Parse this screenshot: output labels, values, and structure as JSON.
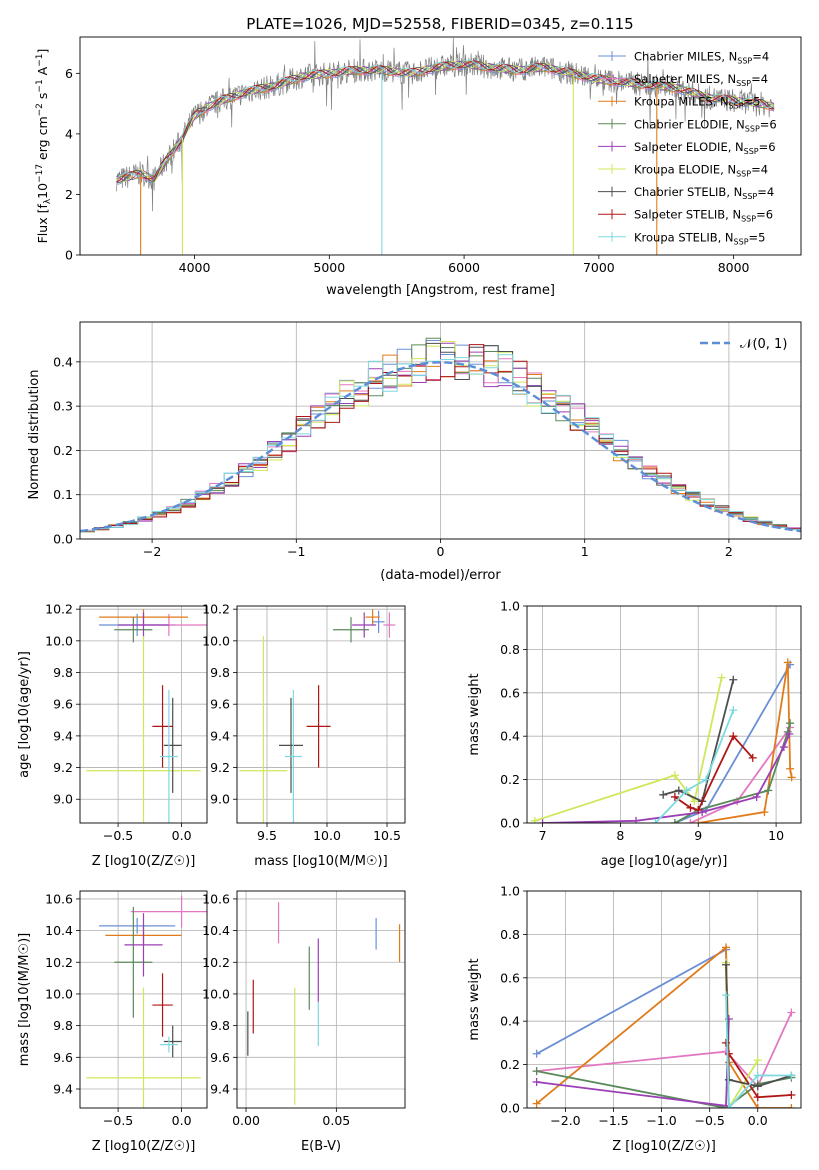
{
  "title": "PLATE=1026, MJD=52558, FIBERID=0345, z=0.115",
  "colors": {
    "Chabrier MILES": "#6b8fd6",
    "Salpeter MILES": "#e377c2",
    "Kroupa MILES": "#e07b1a",
    "Chabrier ELODIE": "#5a8a5a",
    "Salpeter ELODIE": "#9b3fb5",
    "Kroupa ELODIE": "#cde85a",
    "Chabrier STELIB": "#4d4d4d",
    "Salpeter STELIB": "#b01515",
    "Kroupa STELIB": "#7dd9e0"
  },
  "chart_data": [
    {
      "type": "line",
      "id": "spectrum",
      "title": "PLATE=1026, MJD=52558, FIBERID=0345, z=0.115",
      "xlabel": "wavelength [Angstrom, rest frame]",
      "ylabel": "Flux [f_λ 10^-17 erg cm^-2 s^-1 A^-1]",
      "xlim": [
        3150,
        8500
      ],
      "ylim": [
        0,
        7.2
      ],
      "xticks": [
        "4000",
        "5000",
        "6000",
        "7000",
        "8000"
      ],
      "yticks": [
        "0",
        "2",
        "4",
        "6"
      ],
      "data_curve": {
        "x": [
          3450,
          3600,
          3700,
          3800,
          3900,
          4000,
          4100,
          4200,
          4400,
          4600,
          4800,
          5000,
          5200,
          5400,
          5600,
          5800,
          6000,
          6200,
          6400,
          6600,
          6800,
          7000,
          7200,
          7400,
          7600,
          7800,
          8000,
          8200,
          8300
        ],
        "y": [
          2.5,
          2.7,
          2.5,
          3.2,
          3.8,
          4.6,
          4.9,
          5.1,
          5.4,
          5.6,
          5.9,
          6.0,
          6.1,
          6.1,
          6.0,
          6.2,
          6.3,
          6.2,
          6.1,
          6.2,
          6.0,
          5.8,
          5.7,
          5.6,
          5.5,
          5.2,
          5.1,
          5.0,
          4.9
        ]
      },
      "legend": [
        "Chabrier MILES, N_SSP=4",
        "Salpeter MILES, N_SSP=4",
        "Kroupa MILES, N_SSP=5",
        "Chabrier ELODIE, N_SSP=6",
        "Salpeter ELODIE, N_SSP=6",
        "Kroupa ELODIE, N_SSP=4",
        "Chabrier STELIB, N_SSP=4",
        "Salpeter STELIB, N_SSP=6",
        "Kroupa STELIB, N_SSP=5"
      ],
      "legend_placement": "right"
    },
    {
      "type": "histogram",
      "id": "residuals",
      "xlabel": "(data-model)/error",
      "ylabel": "Normed distribution",
      "xlim": [
        -2.5,
        2.5
      ],
      "ylim": [
        0,
        0.49
      ],
      "xticks": [
        "−2",
        "−1",
        "0",
        "1",
        "2"
      ],
      "yticks": [
        "0.0",
        "0.1",
        "0.2",
        "0.3",
        "0.4"
      ],
      "grid": true,
      "reference_curve": {
        "name": "𝒩(0, 1)",
        "mu": 0,
        "sigma": 1
      },
      "legend_placement": "top-right"
    },
    {
      "type": "scatter",
      "id": "age_vs_Z",
      "xlabel": "Z [log10(Z/Z☉)]",
      "ylabel": "age [log10(age/yr)]",
      "xlim": [
        -0.8,
        0.2
      ],
      "ylim": [
        8.85,
        10.22
      ],
      "xticks": [
        "−0.5",
        "0.0"
      ],
      "yticks": [
        "9.0",
        "9.2",
        "9.4",
        "9.6",
        "9.8",
        "10.0",
        "10.2"
      ],
      "grid": true,
      "points": [
        {
          "model": "Chabrier MILES",
          "x": -0.35,
          "xerr": 0.3,
          "y": 10.1,
          "yerr": 0.07
        },
        {
          "model": "Salpeter MILES",
          "x": -0.1,
          "xerr": 0.3,
          "y": 10.1,
          "yerr": 0.07
        },
        {
          "model": "Kroupa MILES",
          "x": -0.3,
          "xerr": 0.35,
          "y": 10.15,
          "yerr": 0.05
        },
        {
          "model": "Chabrier ELODIE",
          "x": -0.38,
          "xerr": 0.15,
          "y": 10.07,
          "yerr": 0.08
        },
        {
          "model": "Salpeter ELODIE",
          "x": -0.3,
          "xerr": 0.2,
          "y": 10.1,
          "yerr": 0.08
        },
        {
          "model": "Kroupa ELODIE",
          "x": -0.3,
          "xerr": 0.45,
          "y": 9.18,
          "yerr": 0.85
        },
        {
          "model": "Chabrier STELIB",
          "x": -0.07,
          "xerr": 0.07,
          "y": 9.34,
          "yerr": 0.3
        },
        {
          "model": "Salpeter STELIB",
          "x": -0.15,
          "xerr": 0.08,
          "y": 9.46,
          "yerr": 0.26
        },
        {
          "model": "Kroupa STELIB",
          "x": -0.1,
          "xerr": 0.07,
          "y": 9.27,
          "yerr": 0.42
        }
      ]
    },
    {
      "type": "scatter",
      "id": "age_vs_mass",
      "xlabel": "mass [log10(M/M☉)]",
      "ylabel": "",
      "xlim": [
        9.25,
        10.65
      ],
      "ylim": [
        8.85,
        10.22
      ],
      "xticks": [
        "9.5",
        "10.0",
        "10.5"
      ],
      "yticks": [
        "9.0",
        "9.2",
        "9.4",
        "9.6",
        "9.8",
        "10.0",
        "10.2"
      ],
      "grid": true,
      "points": [
        {
          "model": "Chabrier MILES",
          "x": 10.43,
          "xerr": 0.05,
          "y": 10.12,
          "yerr": 0.07
        },
        {
          "model": "Salpeter MILES",
          "x": 10.52,
          "xerr": 0.05,
          "y": 10.1,
          "yerr": 0.08
        },
        {
          "model": "Kroupa MILES",
          "x": 10.38,
          "xerr": 0.06,
          "y": 10.15,
          "yerr": 0.05
        },
        {
          "model": "Chabrier ELODIE",
          "x": 10.2,
          "xerr": 0.15,
          "y": 10.07,
          "yerr": 0.08
        },
        {
          "model": "Salpeter ELODIE",
          "x": 10.31,
          "xerr": 0.1,
          "y": 10.1,
          "yerr": 0.08
        },
        {
          "model": "Kroupa ELODIE",
          "x": 9.47,
          "xerr": 0.2,
          "y": 9.18,
          "yerr": 0.85
        },
        {
          "model": "Chabrier STELIB",
          "x": 9.7,
          "xerr": 0.1,
          "y": 9.34,
          "yerr": 0.3
        },
        {
          "model": "Salpeter STELIB",
          "x": 9.93,
          "xerr": 0.1,
          "y": 9.46,
          "yerr": 0.26
        },
        {
          "model": "Kroupa STELIB",
          "x": 9.72,
          "xerr": 0.07,
          "y": 9.27,
          "yerr": 0.42
        }
      ]
    },
    {
      "type": "line",
      "id": "weight_vs_age",
      "xlabel": "age [log10(age/yr)]",
      "ylabel": "mass weight",
      "xlim": [
        6.8,
        10.32
      ],
      "ylim": [
        0,
        1.0
      ],
      "xticks": [
        "7",
        "8",
        "9",
        "10"
      ],
      "yticks": [
        "0.0",
        "0.2",
        "0.4",
        "0.6",
        "0.8",
        "1.0"
      ],
      "grid": true,
      "series": [
        {
          "model": "Chabrier MILES",
          "x": [
            8.7,
            9.1,
            10.18
          ],
          "y": [
            0.0,
            0.06,
            0.73
          ]
        },
        {
          "model": "Salpeter MILES",
          "x": [
            8.9,
            9.5,
            10.18
          ],
          "y": [
            0.0,
            0.1,
            0.44
          ]
        },
        {
          "model": "Kroupa MILES",
          "x": [
            9.0,
            9.85,
            10.15,
            10.18,
            10.2
          ],
          "y": [
            0.0,
            0.05,
            0.74,
            0.25,
            0.21
          ]
        },
        {
          "model": "Chabrier ELODIE",
          "x": [
            8.7,
            9.0,
            9.9,
            10.15,
            10.18
          ],
          "y": [
            0.0,
            0.06,
            0.15,
            0.42,
            0.46
          ]
        },
        {
          "model": "Salpeter ELODIE",
          "x": [
            7.0,
            8.2,
            9.05,
            9.75,
            10.1,
            10.17
          ],
          "y": [
            0.0,
            0.01,
            0.05,
            0.12,
            0.35,
            0.41
          ]
        },
        {
          "model": "Kroupa ELODIE",
          "x": [
            6.9,
            8.7,
            8.95,
            9.3
          ],
          "y": [
            0.01,
            0.22,
            0.1,
            0.67
          ]
        },
        {
          "model": "Chabrier STELIB",
          "x": [
            8.55,
            8.75,
            9.05,
            9.45
          ],
          "y": [
            0.13,
            0.15,
            0.1,
            0.66
          ]
        },
        {
          "model": "Salpeter STELIB",
          "x": [
            8.7,
            8.9,
            9.0,
            9.45,
            9.7
          ],
          "y": [
            0.12,
            0.07,
            0.06,
            0.4,
            0.3
          ]
        },
        {
          "model": "Kroupa STELIB",
          "x": [
            8.45,
            8.85,
            9.1,
            9.45
          ],
          "y": [
            0.0,
            0.15,
            0.2,
            0.52
          ]
        }
      ]
    },
    {
      "type": "scatter",
      "id": "mass_vs_Z",
      "xlabel": "Z [log10(Z/Z☉)]",
      "ylabel": "mass [log10(M/M☉)]",
      "xlim": [
        -0.8,
        0.2
      ],
      "ylim": [
        9.28,
        10.65
      ],
      "xticks": [
        "−0.5",
        "0.0"
      ],
      "yticks": [
        "9.4",
        "9.6",
        "9.8",
        "10.0",
        "10.2",
        "10.4",
        "10.6"
      ],
      "grid": true,
      "points": [
        {
          "model": "Chabrier MILES",
          "x": -0.35,
          "xerr": 0.3,
          "y": 10.43,
          "yerr": 0.05
        },
        {
          "model": "Salpeter MILES",
          "x": 0.0,
          "xerr": 0.4,
          "y": 10.52,
          "yerr": 0.1
        },
        {
          "model": "Kroupa MILES",
          "x": -0.3,
          "xerr": 0.3,
          "y": 10.37,
          "yerr": 0.06
        },
        {
          "model": "Chabrier ELODIE",
          "x": -0.38,
          "xerr": 0.15,
          "y": 10.2,
          "yerr": 0.35
        },
        {
          "model": "Salpeter ELODIE",
          "x": -0.3,
          "xerr": 0.15,
          "y": 10.31,
          "yerr": 0.2
        },
        {
          "model": "Kroupa ELODIE",
          "x": -0.3,
          "xerr": 0.45,
          "y": 9.47,
          "yerr": 0.57
        },
        {
          "model": "Chabrier STELIB",
          "x": -0.07,
          "xerr": 0.07,
          "y": 9.7,
          "yerr": 0.1
        },
        {
          "model": "Salpeter STELIB",
          "x": -0.15,
          "xerr": 0.08,
          "y": 9.93,
          "yerr": 0.2
        },
        {
          "model": "Kroupa STELIB",
          "x": -0.1,
          "xerr": 0.07,
          "y": 9.68,
          "yerr": 0.05
        }
      ]
    },
    {
      "type": "scatter",
      "id": "mass_vs_EBV",
      "xlabel": "E(B-V)",
      "ylabel": "",
      "xlim": [
        -0.005,
        0.088
      ],
      "ylim": [
        9.28,
        10.65
      ],
      "xticks": [
        "0.00",
        "0.05"
      ],
      "yticks": [
        "9.4",
        "9.6",
        "9.8",
        "10.0",
        "10.2",
        "10.4",
        "10.6"
      ],
      "grid": true,
      "points": [
        {
          "model": "Chabrier MILES",
          "x": 0.072,
          "y": 10.38,
          "yerr": 0.1
        },
        {
          "model": "Salpeter MILES",
          "x": 0.018,
          "y": 10.45,
          "yerr": 0.13
        },
        {
          "model": "Kroupa MILES",
          "x": 0.085,
          "y": 10.32,
          "yerr": 0.12
        },
        {
          "model": "Chabrier ELODIE",
          "x": 0.035,
          "y": 10.1,
          "yerr": 0.2
        },
        {
          "model": "Salpeter ELODIE",
          "x": 0.04,
          "y": 10.15,
          "yerr": 0.2
        },
        {
          "model": "Kroupa ELODIE",
          "x": 0.027,
          "y": 9.67,
          "yerr": 0.37
        },
        {
          "model": "Chabrier STELIB",
          "x": 0.001,
          "y": 9.75,
          "yerr": 0.14
        },
        {
          "model": "Salpeter STELIB",
          "x": 0.004,
          "y": 9.92,
          "yerr": 0.17
        },
        {
          "model": "Kroupa STELIB",
          "x": 0.04,
          "y": 9.81,
          "yerr": 0.14
        }
      ]
    },
    {
      "type": "line",
      "id": "weight_vs_Z",
      "xlabel": "Z [log10(Z/Z☉)]",
      "ylabel": "mass weight",
      "xlim": [
        -2.4,
        0.45
      ],
      "ylim": [
        0,
        1.0
      ],
      "xticks": [
        "−2.0",
        "−1.5",
        "−1.0",
        "−0.5",
        "0.0"
      ],
      "yticks": [
        "0.0",
        "0.2",
        "0.4",
        "0.6",
        "0.8",
        "1.0"
      ],
      "grid": true,
      "series": [
        {
          "model": "Chabrier MILES",
          "x": [
            -2.3,
            -0.33,
            -0.3,
            0.0
          ],
          "y": [
            0.25,
            0.73,
            0.0,
            0.0
          ]
        },
        {
          "model": "Salpeter MILES",
          "x": [
            -2.3,
            -0.33,
            0.0,
            0.35
          ],
          "y": [
            0.17,
            0.26,
            0.1,
            0.44
          ]
        },
        {
          "model": "Kroupa MILES",
          "x": [
            -2.3,
            -0.33,
            -0.3,
            0.0,
            0.35
          ],
          "y": [
            0.02,
            0.74,
            0.21,
            0.0,
            0.0
          ]
        },
        {
          "model": "Chabrier ELODIE",
          "x": [
            -2.3,
            -0.33,
            0.0,
            0.35
          ],
          "y": [
            0.17,
            0.0,
            0.11,
            0.14
          ]
        },
        {
          "model": "Salpeter ELODIE",
          "x": [
            -2.3,
            -0.33,
            -0.3
          ],
          "y": [
            0.12,
            0.01,
            0.41
          ]
        },
        {
          "model": "Kroupa ELODIE",
          "x": [
            -0.33,
            -0.3,
            0.0
          ],
          "y": [
            0.67,
            0.0,
            0.22
          ]
        },
        {
          "model": "Chabrier STELIB",
          "x": [
            -0.33,
            -0.3,
            0.0,
            0.35
          ],
          "y": [
            0.66,
            0.13,
            0.1,
            0.15
          ]
        },
        {
          "model": "Salpeter STELIB",
          "x": [
            -0.33,
            -0.3,
            0.0,
            0.35
          ],
          "y": [
            0.3,
            0.25,
            0.05,
            0.06
          ]
        },
        {
          "model": "Kroupa STELIB",
          "x": [
            -0.33,
            -0.3,
            0.0,
            0.35
          ],
          "y": [
            0.52,
            0.0,
            0.15,
            0.15
          ]
        }
      ]
    }
  ]
}
